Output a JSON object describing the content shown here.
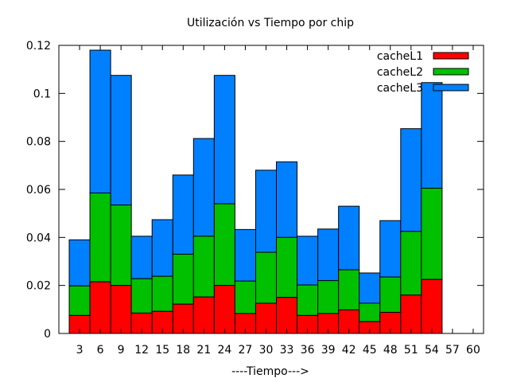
{
  "chart_data": {
    "type": "bar",
    "stacked": true,
    "title": "Utilización vs Tiempo por chip",
    "xlabel": "----Tiempo--->",
    "ylabel": "",
    "ylim": [
      0,
      0.12
    ],
    "yticks": [
      "0",
      "0.02",
      "0.04",
      "0.06",
      "0.08",
      "0.1",
      "0.12"
    ],
    "categories": [
      "3",
      "6",
      "9",
      "12",
      "15",
      "18",
      "21",
      "24",
      "27",
      "30",
      "33",
      "36",
      "39",
      "42",
      "45",
      "48",
      "51",
      "54",
      "57",
      "60"
    ],
    "series": [
      {
        "name": "cacheL1",
        "color": "#ff0000",
        "values": [
          0.0075,
          0.0215,
          0.02,
          0.0085,
          0.0092,
          0.0122,
          0.0152,
          0.02,
          0.0083,
          0.0126,
          0.015,
          0.0075,
          0.0083,
          0.0098,
          0.0049,
          0.0088,
          0.016,
          0.0225,
          0,
          0
        ]
      },
      {
        "name": "cacheL2",
        "color": "#00c000",
        "values": [
          0.0123,
          0.037,
          0.0335,
          0.0143,
          0.0146,
          0.0208,
          0.0253,
          0.034,
          0.0135,
          0.0212,
          0.025,
          0.0127,
          0.0137,
          0.0167,
          0.0077,
          0.0147,
          0.0265,
          0.038,
          0,
          0
        ]
      },
      {
        "name": "cacheL3",
        "color": "#0080ff",
        "values": [
          0.0192,
          0.0595,
          0.054,
          0.0177,
          0.0236,
          0.033,
          0.0407,
          0.0535,
          0.0215,
          0.0342,
          0.0315,
          0.0203,
          0.0215,
          0.0265,
          0.0126,
          0.0235,
          0.0428,
          0.044,
          0,
          0
        ]
      }
    ],
    "legend_position": "top-right"
  }
}
